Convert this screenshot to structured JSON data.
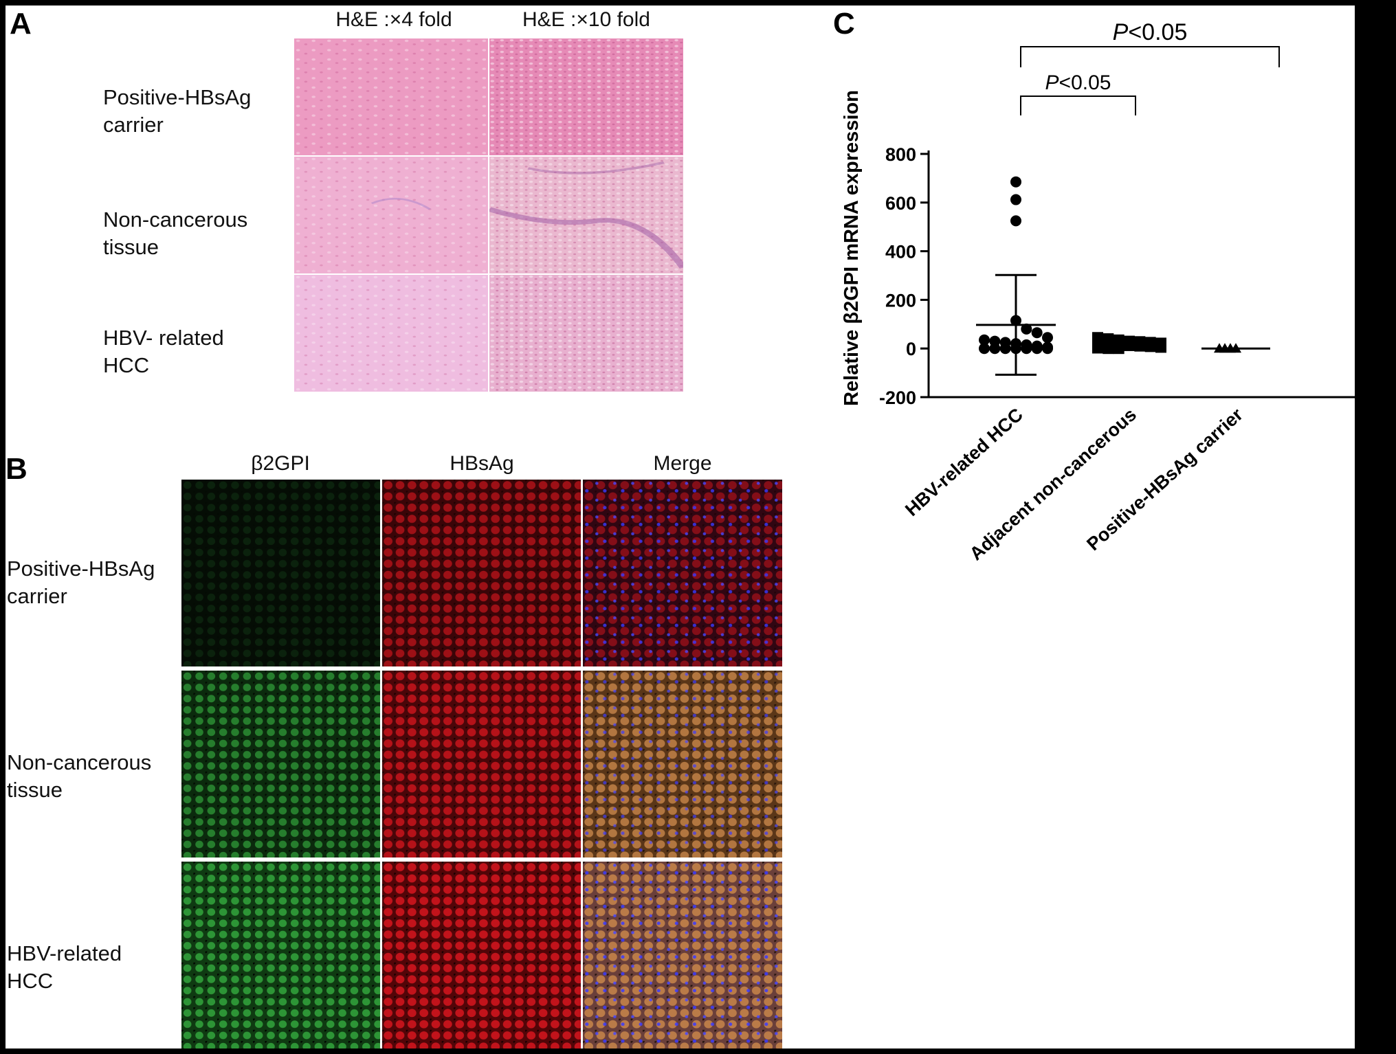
{
  "panels": {
    "a": {
      "letter": "A",
      "col_headers": [
        "H&E :×4 fold",
        "H&E :×10 fold"
      ],
      "row_labels": [
        [
          "Positive-HBsAg",
          "carrier"
        ],
        [
          "Non-cancerous",
          "tissue"
        ],
        [
          "HBV- related",
          "HCC"
        ]
      ]
    },
    "b": {
      "letter": "B",
      "col_headers": [
        "β2GPI",
        "HBsAg",
        "Merge"
      ],
      "row_labels": [
        [
          "Positive-HBsAg",
          "carrier"
        ],
        [
          "Non-cancerous",
          "tissue"
        ],
        [
          "HBV-related",
          "HCC"
        ]
      ]
    },
    "c": {
      "letter": "C"
    }
  },
  "chart_data": {
    "type": "scatter",
    "ylabel": "Relative  β2GPI mRNA expression",
    "ylim": [
      -200,
      800
    ],
    "yticks": [
      -200,
      0,
      200,
      400,
      600,
      800
    ],
    "categories": [
      "HBV-related HCC",
      "Adjacent non-cancerous",
      "Positive-HBsAg carrier"
    ],
    "series": [
      {
        "marker": "circle",
        "points": [
          685,
          612,
          525,
          115,
          80,
          65,
          45,
          35,
          30,
          25,
          20,
          15,
          10,
          5,
          0,
          0,
          0,
          0,
          0,
          0,
          0
        ],
        "mean": 97,
        "sd_upper": 302,
        "sd_lower": -108
      },
      {
        "marker": "square",
        "points": [
          45,
          40,
          35,
          30,
          28,
          25,
          22,
          20,
          18,
          15,
          12,
          10,
          8,
          5,
          2,
          0,
          0
        ],
        "mean": 18,
        "sd_upper": 35,
        "sd_lower": 5
      },
      {
        "marker": "triangle",
        "points": [
          0,
          0,
          0,
          0
        ],
        "mean": 0,
        "sd_upper": 0,
        "sd_lower": 0
      }
    ],
    "annotations": [
      {
        "text_p": "P",
        "text_rest": "<0.05",
        "from": 0,
        "to": 1,
        "level": "lower"
      },
      {
        "text_p": "P",
        "text_rest": "<0.05",
        "from": 0,
        "to": 2,
        "level": "upper"
      }
    ]
  }
}
